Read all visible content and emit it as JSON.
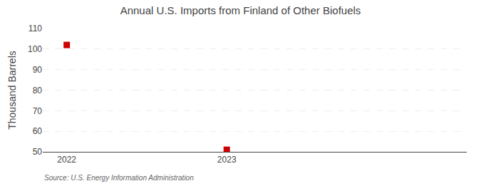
{
  "chart_data": {
    "type": "scatter",
    "title": "Annual U.S. Imports from Finland of Other Biofuels",
    "y_label": "Thousand Barrels",
    "annotations": [
      "Source: U.S. Energy Information Administration"
    ],
    "x": [
      2022,
      2023
    ],
    "values": [
      102,
      51
    ],
    "color": "#cc0000",
    "marker": "square",
    "xlim": [
      2021.85,
      2024.5
    ],
    "xticks": [
      2022,
      2023
    ],
    "ylim": [
      50,
      110
    ],
    "yticks": [
      50,
      60,
      70,
      80,
      90,
      100,
      110
    ],
    "grid": true
  }
}
